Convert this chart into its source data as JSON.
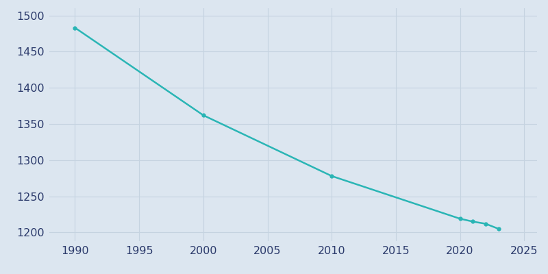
{
  "years": [
    1990,
    2000,
    2010,
    2020,
    2021,
    2022,
    2023
  ],
  "population": [
    1483,
    1362,
    1278,
    1219,
    1215,
    1212,
    1205
  ],
  "line_color": "#2ab5b5",
  "marker_style": "o",
  "marker_size": 3.5,
  "background_color": "#dce6f0",
  "plot_bg_color": "#dce6f0",
  "grid_color": "#c5d3e0",
  "xlim": [
    1988,
    2026
  ],
  "ylim": [
    1188,
    1510
  ],
  "xticks": [
    1990,
    1995,
    2000,
    2005,
    2010,
    2015,
    2020,
    2025
  ],
  "yticks": [
    1200,
    1250,
    1300,
    1350,
    1400,
    1450,
    1500
  ],
  "tick_color": "#2b3a6b",
  "tick_fontsize": 11.5
}
